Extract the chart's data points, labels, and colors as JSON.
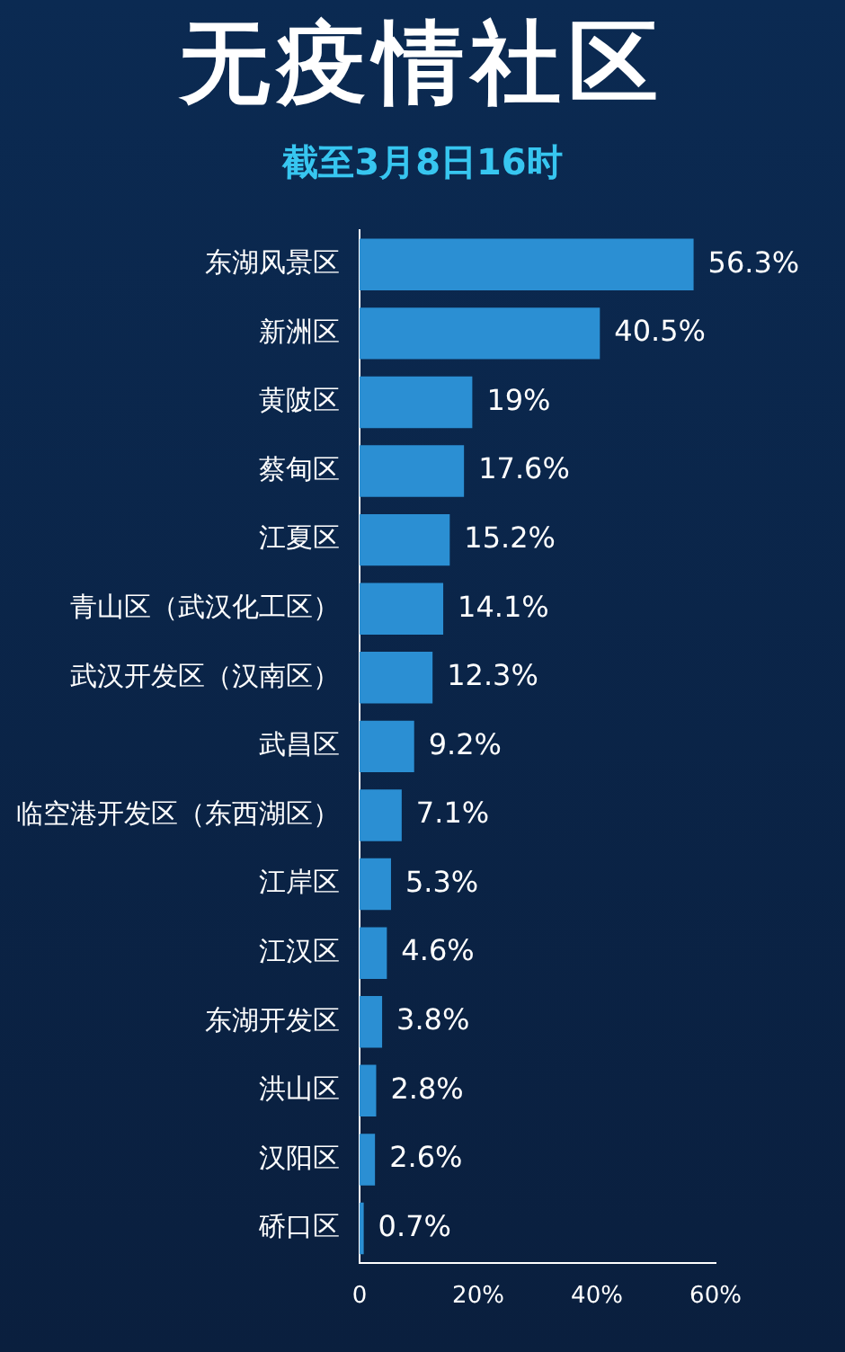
{
  "chart_data": {
    "type": "bar",
    "orientation": "horizontal",
    "title": "无疫情社区",
    "subtitle": "截至3月8日16时",
    "categories": [
      "东湖风景区",
      "新洲区",
      "黄陂区",
      "蔡甸区",
      "江夏区",
      "青山区（武汉化工区）",
      "武汉开发区（汉南区）",
      "武昌区",
      "临空港开发区（东西湖区）",
      "江岸区",
      "江汉区",
      "东湖开发区",
      "洪山区",
      "汉阳区",
      "硚口区"
    ],
    "values": [
      56.3,
      40.5,
      19,
      17.6,
      15.2,
      14.1,
      12.3,
      9.2,
      7.1,
      5.3,
      4.6,
      3.8,
      2.8,
      2.6,
      0.7
    ],
    "value_labels": [
      "56.3%",
      "40.5%",
      "19%",
      "17.6%",
      "15.2%",
      "14.1%",
      "12.3%",
      "9.2%",
      "7.1%",
      "5.3%",
      "4.6%",
      "3.8%",
      "2.8%",
      "2.6%",
      "0.7%"
    ],
    "color": "#2b8fd3",
    "xlim": [
      0,
      60
    ],
    "xticks": [
      0,
      {
        "value": 20,
        "label": "20%"
      },
      {
        "value": 40,
        "label": "40%"
      },
      {
        "value": 60,
        "label": "60%"
      }
    ],
    "grid": false,
    "legend": false
  }
}
